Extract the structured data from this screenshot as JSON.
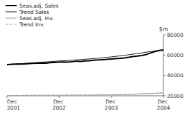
{
  "chart_data": {
    "type": "line",
    "y_label": "$m",
    "categories": [
      "Dec 2001",
      null,
      null,
      null,
      null,
      null,
      null,
      null,
      null,
      null,
      null,
      null,
      "Dec 2002",
      null,
      null,
      null,
      null,
      null,
      null,
      null,
      null,
      null,
      null,
      null,
      "Dec 2003",
      null,
      null,
      null,
      null,
      null,
      null,
      null,
      null,
      null,
      null,
      null,
      "Dec 2004"
    ],
    "ylim": [
      20000,
      80000
    ],
    "yticks": [
      20000,
      40000,
      60000,
      80000
    ],
    "grid": false,
    "legend": "top-left",
    "series": [
      {
        "name": "Seas.adj. Sales",
        "color": "#000000",
        "line_style": "solid",
        "values": [
          50500,
          50800,
          51000,
          51000,
          51200,
          51500,
          51800,
          52000,
          52200,
          52000,
          52500,
          52800,
          53000,
          53200,
          53000,
          53500,
          54000,
          53800,
          54200,
          54500,
          55000,
          55200,
          55500,
          55800,
          56200,
          56500,
          56800,
          57200,
          57800,
          58500,
          59000,
          59500,
          60500,
          62000,
          63500,
          64500,
          65000
        ]
      },
      {
        "name": "Trend Sales",
        "color": "#000000",
        "line_style": "solid",
        "values": [
          51000,
          51200,
          51400,
          51600,
          51900,
          52100,
          52400,
          52700,
          53000,
          53300,
          53600,
          53900,
          54200,
          54500,
          54700,
          55000,
          55300,
          55600,
          55900,
          56200,
          56600,
          57000,
          57400,
          57800,
          58200,
          58700,
          59200,
          59700,
          60300,
          60900,
          61500,
          62100,
          62800,
          63400,
          64000,
          64500,
          65000
        ]
      },
      {
        "name": "Seas.adj. Inv.",
        "color": "#bbbbbb",
        "line_style": "solid",
        "values": [
          20200,
          20100,
          20300,
          20200,
          20400,
          20300,
          20500,
          20400,
          20300,
          20500,
          20600,
          20500,
          20600,
          20500,
          20700,
          20600,
          20800,
          20700,
          20600,
          20800,
          20700,
          20900,
          21000,
          20900,
          21100,
          21000,
          21200,
          21300,
          21400,
          21500,
          21700,
          21900,
          22100,
          22300,
          22500,
          22700,
          23000
        ]
      },
      {
        "name": "Trend Inv.",
        "color": "#999999",
        "line_style": "dashed",
        "values": [
          20300,
          20320,
          20330,
          20350,
          20370,
          20380,
          20380,
          20370,
          20370,
          20400,
          20430,
          20460,
          20490,
          20500,
          20520,
          20560,
          20600,
          20610,
          20610,
          20640,
          20680,
          20740,
          20810,
          20890,
          20970,
          21060,
          21160,
          21270,
          21390,
          21520,
          21670,
          21840,
          22020,
          22210,
          22400,
          22620,
          22850
        ]
      }
    ]
  }
}
